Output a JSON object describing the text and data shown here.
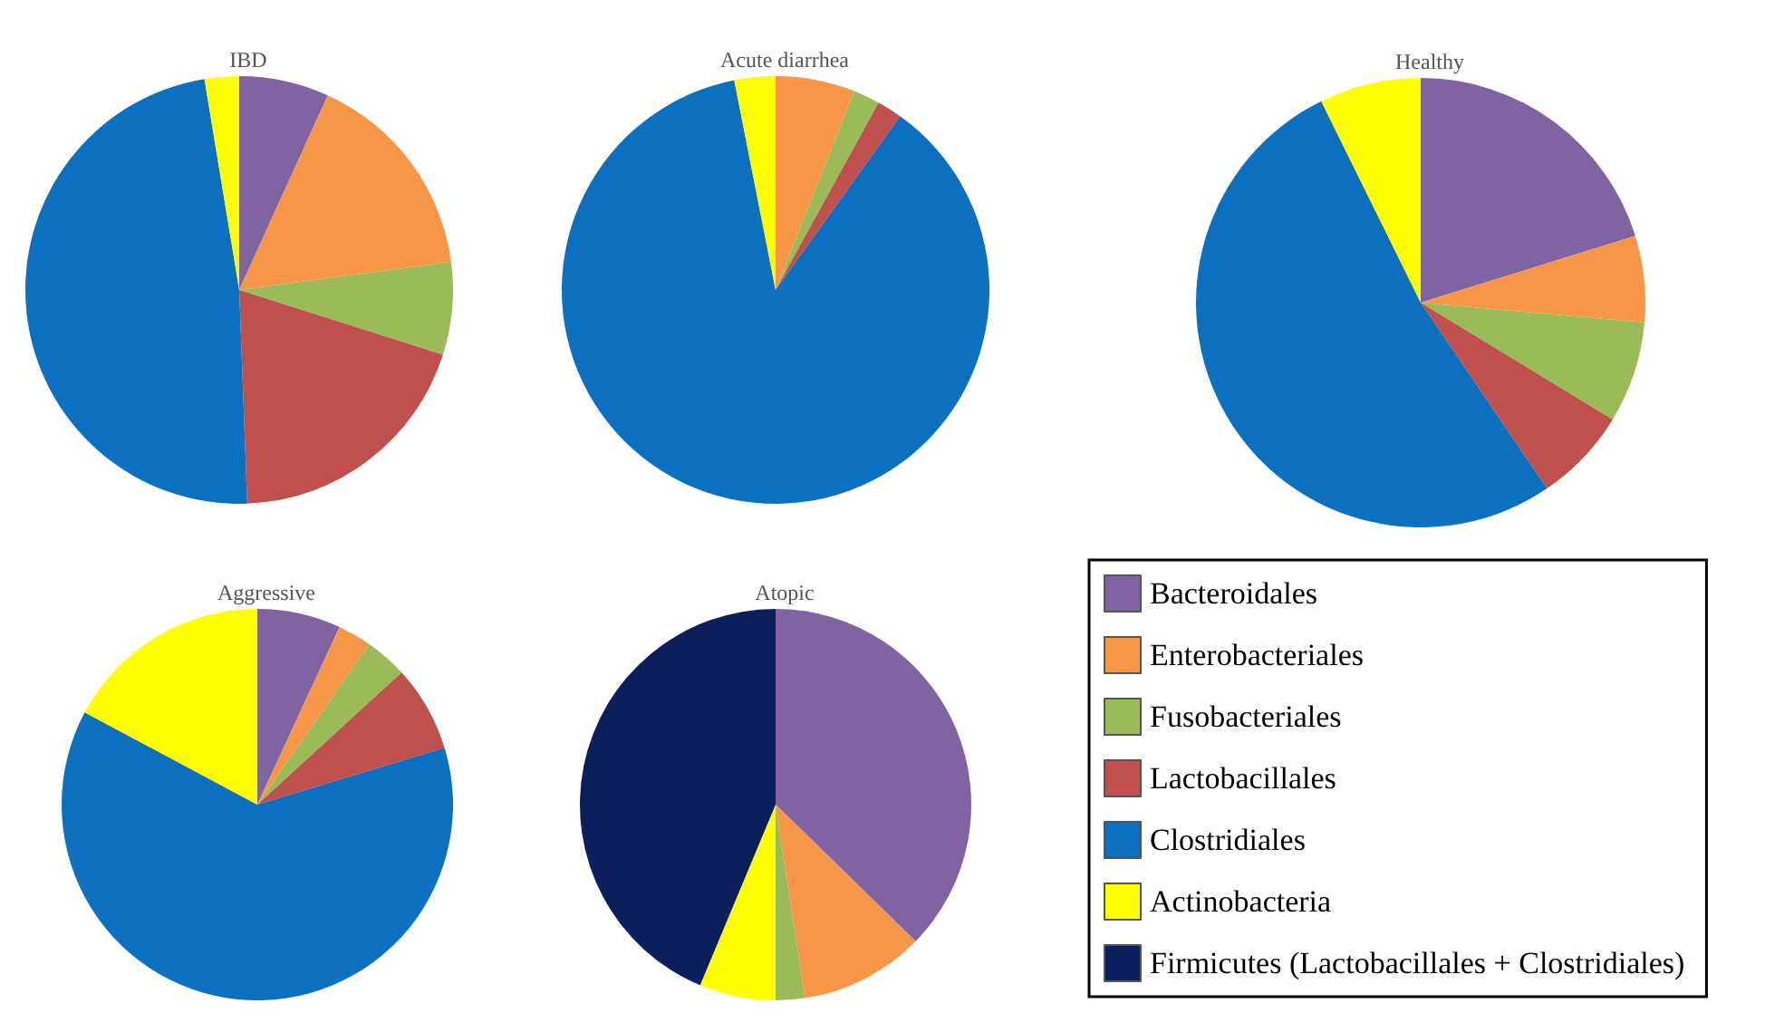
{
  "chart_data": [
    {
      "type": "pie",
      "title": "IBD",
      "categories": [
        null,
        null,
        null,
        null,
        null,
        null,
        null
      ],
      "values": [
        6.8,
        16.1,
        7,
        19.5,
        48,
        2.6,
        0
      ],
      "colors": [
        "#8064a2",
        "#f79646",
        "#9bbb59",
        "#c0504d",
        "#0c70c0",
        "#ffff00",
        "#0b1f5c"
      ]
    },
    {
      "type": "pie",
      "title": "Acute diarrhea",
      "categories": [
        null,
        null,
        null,
        null,
        null,
        null,
        null
      ],
      "values": [
        0,
        6,
        2,
        1.9,
        87,
        3.1,
        0
      ],
      "colors": [
        "#8064a2",
        "#f79646",
        "#9bbb59",
        "#c0504d",
        "#0c70c0",
        "#ffff00",
        "#0b1f5c"
      ]
    },
    {
      "type": "pie",
      "title": "Healthy",
      "categories": [
        null,
        null,
        null,
        null,
        null,
        null,
        null
      ],
      "values": [
        20.2,
        6.2,
        7.3,
        6.8,
        52.2,
        7.3,
        0
      ],
      "colors": [
        "#8064a2",
        "#f79646",
        "#9bbb59",
        "#c0504d",
        "#0c70c0",
        "#ffff00",
        "#0b1f5c"
      ]
    },
    {
      "type": "pie",
      "title": "Aggressive",
      "categories": [
        null,
        null,
        null,
        null,
        null,
        null,
        null
      ],
      "values": [
        6.9,
        2.8,
        3.5,
        7.1,
        62.5,
        17.2,
        0
      ],
      "colors": [
        "#8064a2",
        "#f79646",
        "#9bbb59",
        "#c0504d",
        "#0c70c0",
        "#ffff00",
        "#0b1f5c"
      ]
    },
    {
      "type": "pie",
      "title": "Atopic",
      "categories": [
        "Bacteroidales",
        "Enterobacteriales",
        "Fusobacteriales",
        "Lactobacillales",
        "Clostridiales",
        "Actinobacteria",
        "Firmicutes (Lactobacillales + Clostridiales)"
      ],
      "values": [
        37.3,
        10.3,
        2.4,
        0,
        0,
        6.3,
        43.7
      ],
      "colors": [
        "#8064a2",
        "#f79646",
        "#9bbb59",
        "#c0504d",
        "#0c70c0",
        "#ffff00",
        "#0b1f5c"
      ],
      "legend": "right"
    }
  ]
}
